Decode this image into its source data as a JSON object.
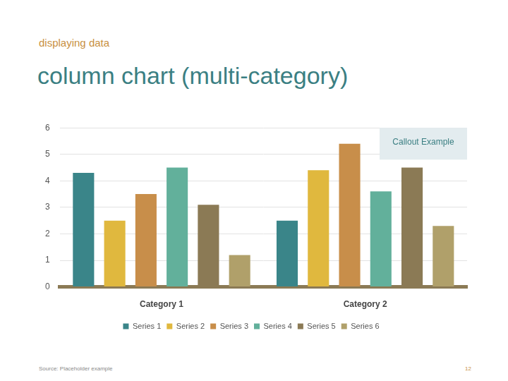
{
  "page": {
    "kicker": "displaying data",
    "source": "Source: Placeholder example",
    "page_number": 12
  },
  "chart_data": {
    "type": "bar",
    "title": "column chart (multi-category)",
    "categories": [
      "Category 1",
      "Category 2"
    ],
    "series": [
      {
        "name": "Series 1",
        "color": "#3a8589",
        "values": [
          4.3,
          2.5
        ]
      },
      {
        "name": "Series 2",
        "color": "#e0b83e",
        "values": [
          2.5,
          4.4
        ]
      },
      {
        "name": "Series 3",
        "color": "#c88e4a",
        "values": [
          3.5,
          5.4
        ]
      },
      {
        "name": "Series 4",
        "color": "#62b09b",
        "values": [
          4.5,
          3.6
        ]
      },
      {
        "name": "Series 5",
        "color": "#8b7a55",
        "values": [
          3.1,
          4.5
        ]
      },
      {
        "name": "Series 6",
        "color": "#b0a06a",
        "values": [
          1.2,
          2.3
        ]
      }
    ],
    "ylim": [
      0,
      6
    ],
    "yticks": [
      0,
      1,
      2,
      3,
      4,
      5,
      6
    ],
    "grid": true,
    "legend": "bottom",
    "annotations": [
      "Callout Example"
    ]
  }
}
